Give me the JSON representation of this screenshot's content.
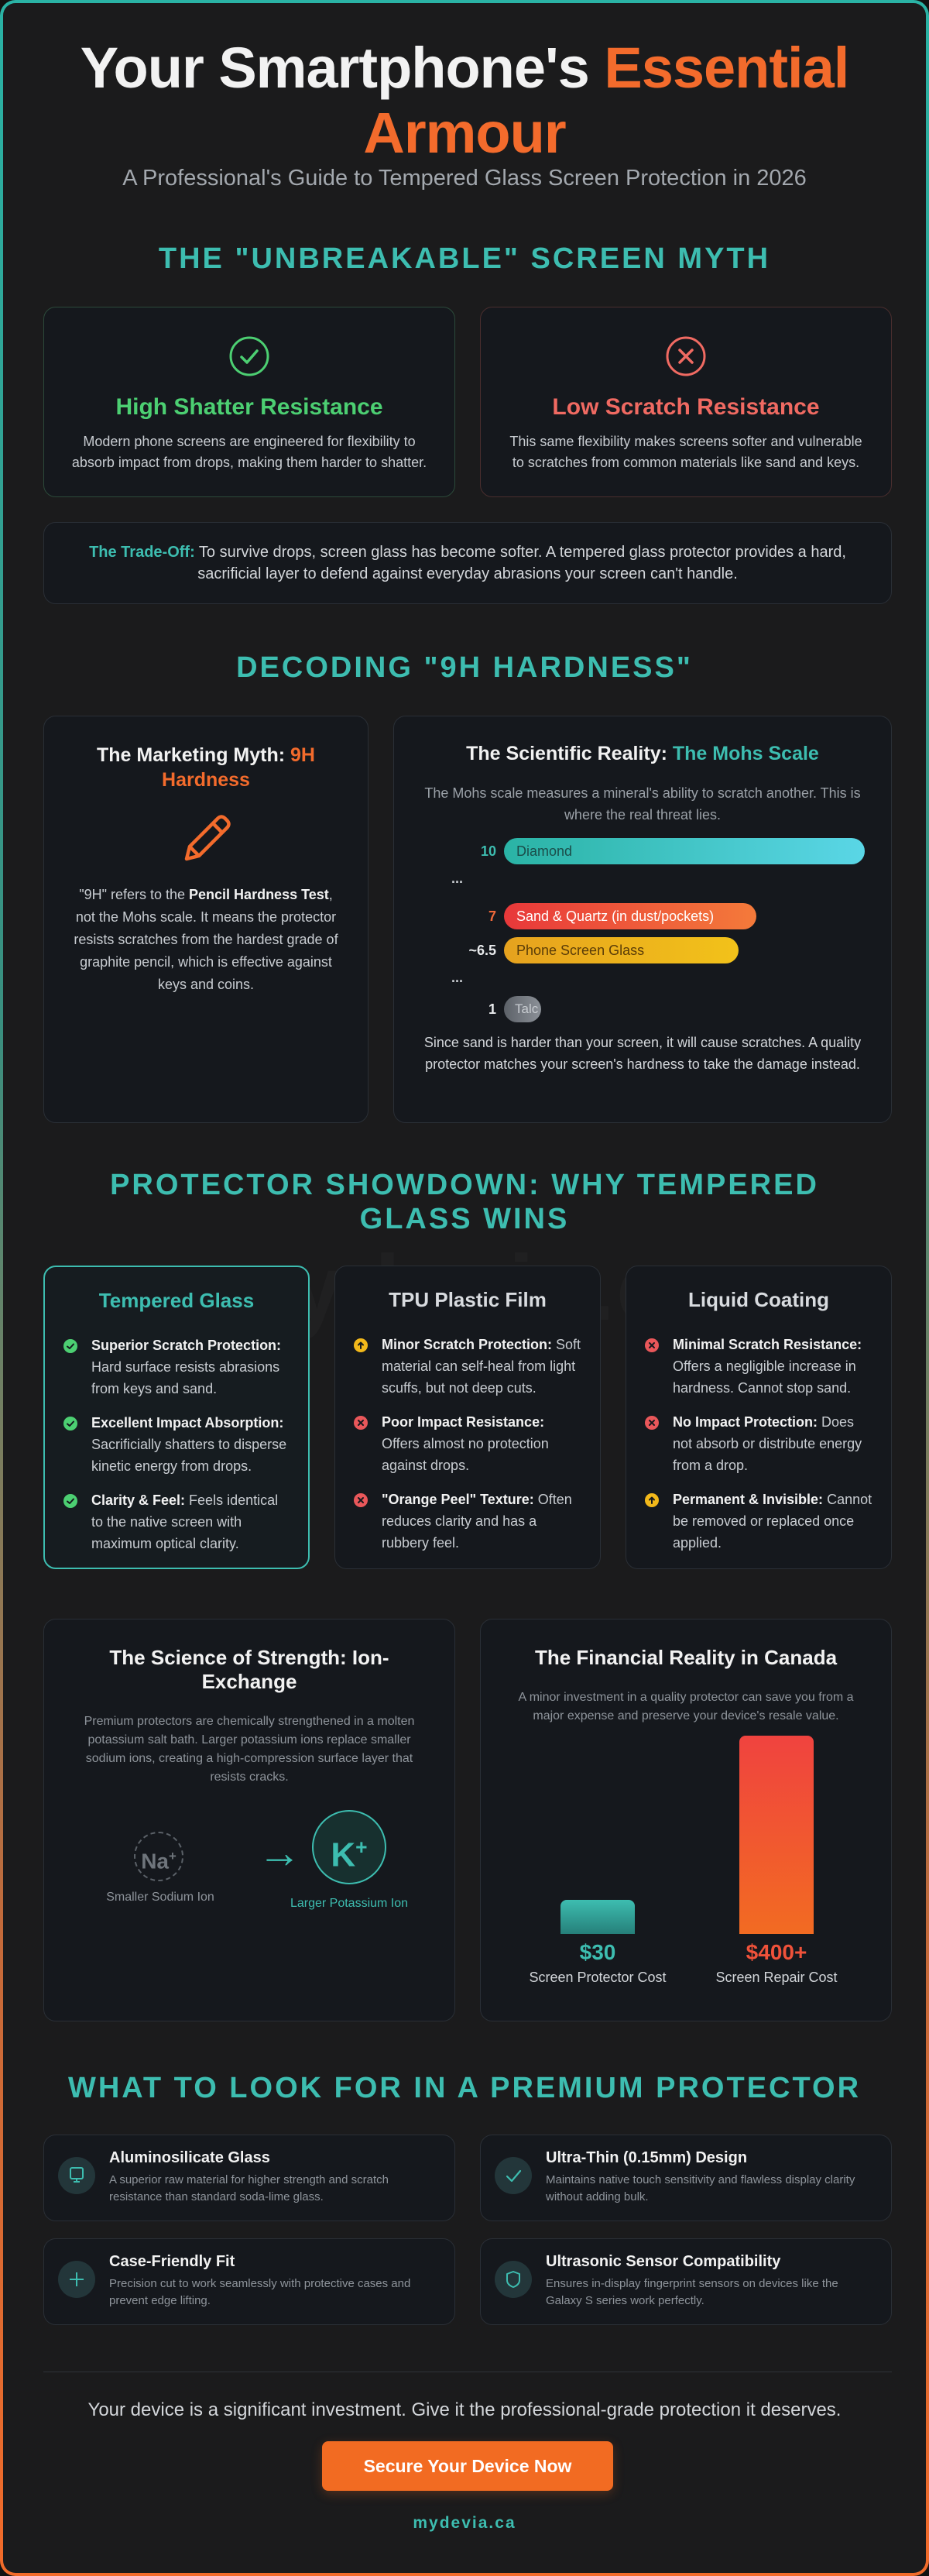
{
  "hero": {
    "title_main": "Your Smartphone's ",
    "title_accent": "Essential Armour",
    "subtitle": "A Professional's Guide to Tempered Glass Screen Protection in 2026"
  },
  "myth": {
    "section_title": "THE \"UNBREAKABLE\" SCREEN MYTH",
    "shatter": {
      "title": "High Shatter Resistance",
      "text": "Modern phone screens are engineered for flexibility to absorb impact from drops, making them harder to shatter."
    },
    "scratch": {
      "title": "Low Scratch Resistance",
      "text": "This same flexibility makes screens softer and vulnerable to scratches from common materials like sand and keys."
    },
    "tradeoff_lead": "The Trade-Off:",
    "tradeoff_text": " To survive drops, screen glass has become softer. A tempered glass protector provides a hard, sacrificial layer to defend against everyday abrasions your screen can't handle."
  },
  "hardness": {
    "section_title": "DECODING \"9H HARDNESS\"",
    "myth_title": "The Marketing Myth: ",
    "myth_accent": "9H Hardness",
    "myth_text_pre": "\"9H\" refers to the ",
    "myth_text_bold": "Pencil Hardness Test",
    "myth_text_post": ", not the Mohs scale. It means the protector resists scratches from the hardest grade of graphite pencil, which is effective against keys and coins.",
    "reality_title": "The Scientific Reality: ",
    "reality_accent": "The Mohs Scale",
    "reality_desc": "The Mohs scale measures a mineral's ability to scratch another. This is where the real threat lies.",
    "mohs": [
      {
        "num": "10",
        "label": "Diamond",
        "value": 10,
        "color_from": "#2ab3a5",
        "color_to": "#5ad6e6",
        "num_color": "#3dbdb0",
        "text_color": "#1b4d4a"
      },
      {
        "num": "7",
        "label": "Sand & Quartz (in dust/pockets)",
        "value": 7,
        "color_from": "#e8383a",
        "color_to": "#f47a3a",
        "num_color": "#f0693a",
        "text_color": "#ffffff"
      },
      {
        "num": "~6.5",
        "label": "Phone Screen Glass",
        "value": 6.5,
        "color_from": "#e6a21e",
        "color_to": "#f2c21a",
        "num_color": "#e8eaec",
        "text_color": "#5a3c08"
      },
      {
        "num": "1",
        "label": "Talc",
        "value": 1,
        "color_from": "#5c6168",
        "color_to": "#8c9198",
        "num_color": "#e8eaec",
        "text_color": "#c8ccd1"
      }
    ],
    "ellipsis": "...",
    "reality_foot": "Since sand is harder than your screen, it will cause scratches. A quality protector matches your screen's hardness to take the damage instead."
  },
  "showdown": {
    "section_title": "PROTECTOR SHOWDOWN: WHY TEMPERED GLASS WINS",
    "watermark": "mydevia.ca",
    "glass": {
      "title": "Tempered Glass",
      "items": [
        {
          "bold": "Superior Scratch Protection:",
          "text": " Hard surface resists abrasions from keys and sand."
        },
        {
          "bold": "Excellent Impact Absorption:",
          "text": " Sacrificially shatters to disperse kinetic energy from drops."
        },
        {
          "bold": "Clarity & Feel:",
          "text": " Feels identical to the native screen with maximum optical clarity."
        }
      ]
    },
    "tpu": {
      "title": "TPU Plastic Film",
      "items": [
        {
          "bold": "Minor Scratch Protection:",
          "text": " Soft material can self-heal from light scuffs, but not deep cuts."
        },
        {
          "bold": "Poor Impact Resistance:",
          "text": " Offers almost no protection against drops."
        },
        {
          "bold": "\"Orange Peel\" Texture:",
          "text": " Often reduces clarity and has a rubbery feel."
        }
      ]
    },
    "liquid": {
      "title": "Liquid Coating",
      "items": [
        {
          "bold": "Minimal Scratch Resistance:",
          "text": " Offers a negligible increase in hardness. Cannot stop sand."
        },
        {
          "bold": "No Impact Protection:",
          "text": " Does not absorb or distribute energy from a drop."
        },
        {
          "bold": "Permanent & Invisible:",
          "text": " Cannot be removed or replaced once applied."
        }
      ]
    }
  },
  "ion": {
    "title": "The Science of Strength: Ion-Exchange",
    "desc": "Premium protectors are chemically strengthened in a molten potassium salt bath. Larger potassium ions replace smaller sodium ions, creating a high-compression surface layer that resists cracks.",
    "na_symbol": "Na",
    "k_symbol": "K",
    "charge": "+",
    "arrow": "→",
    "na_label": "Smaller Sodium Ion",
    "k_label": "Larger Potassium Ion"
  },
  "finance": {
    "title": "The Financial Reality in Canada",
    "desc": "A minor investment in a quality protector can save you from a major expense and preserve your device's resale value.",
    "chart_data": {
      "type": "bar",
      "categories": [
        "Screen Protector Cost",
        "Screen Repair Cost"
      ],
      "values": [
        30,
        400
      ],
      "value_labels": [
        "$30",
        "$400+"
      ],
      "colors": [
        "#3dbdb0",
        "#f0523a"
      ]
    }
  },
  "features": {
    "section_title": "WHAT TO LOOK FOR IN A PREMIUM PROTECTOR",
    "items": [
      {
        "title": "Aluminosilicate Glass",
        "text": "A superior raw material for higher strength and scratch resistance than standard soda-lime glass.",
        "icon": "screen-icon"
      },
      {
        "title": "Ultra-Thin (0.15mm) Design",
        "text": "Maintains native touch sensitivity and flawless display clarity without adding bulk.",
        "icon": "check-icon"
      },
      {
        "title": "Case-Friendly Fit",
        "text": "Precision cut to work seamlessly with protective cases and prevent edge lifting.",
        "icon": "plus-icon"
      },
      {
        "title": "Ultrasonic Sensor Compatibility",
        "text": "Ensures in-display fingerprint sensors on devices like the Galaxy S series work perfectly.",
        "icon": "shield-icon"
      }
    ]
  },
  "footer": {
    "closing": "Your device is a significant investment. Give it the professional-grade protection it deserves.",
    "cta": "Secure Your Device Now",
    "site": "mydevia.ca"
  }
}
